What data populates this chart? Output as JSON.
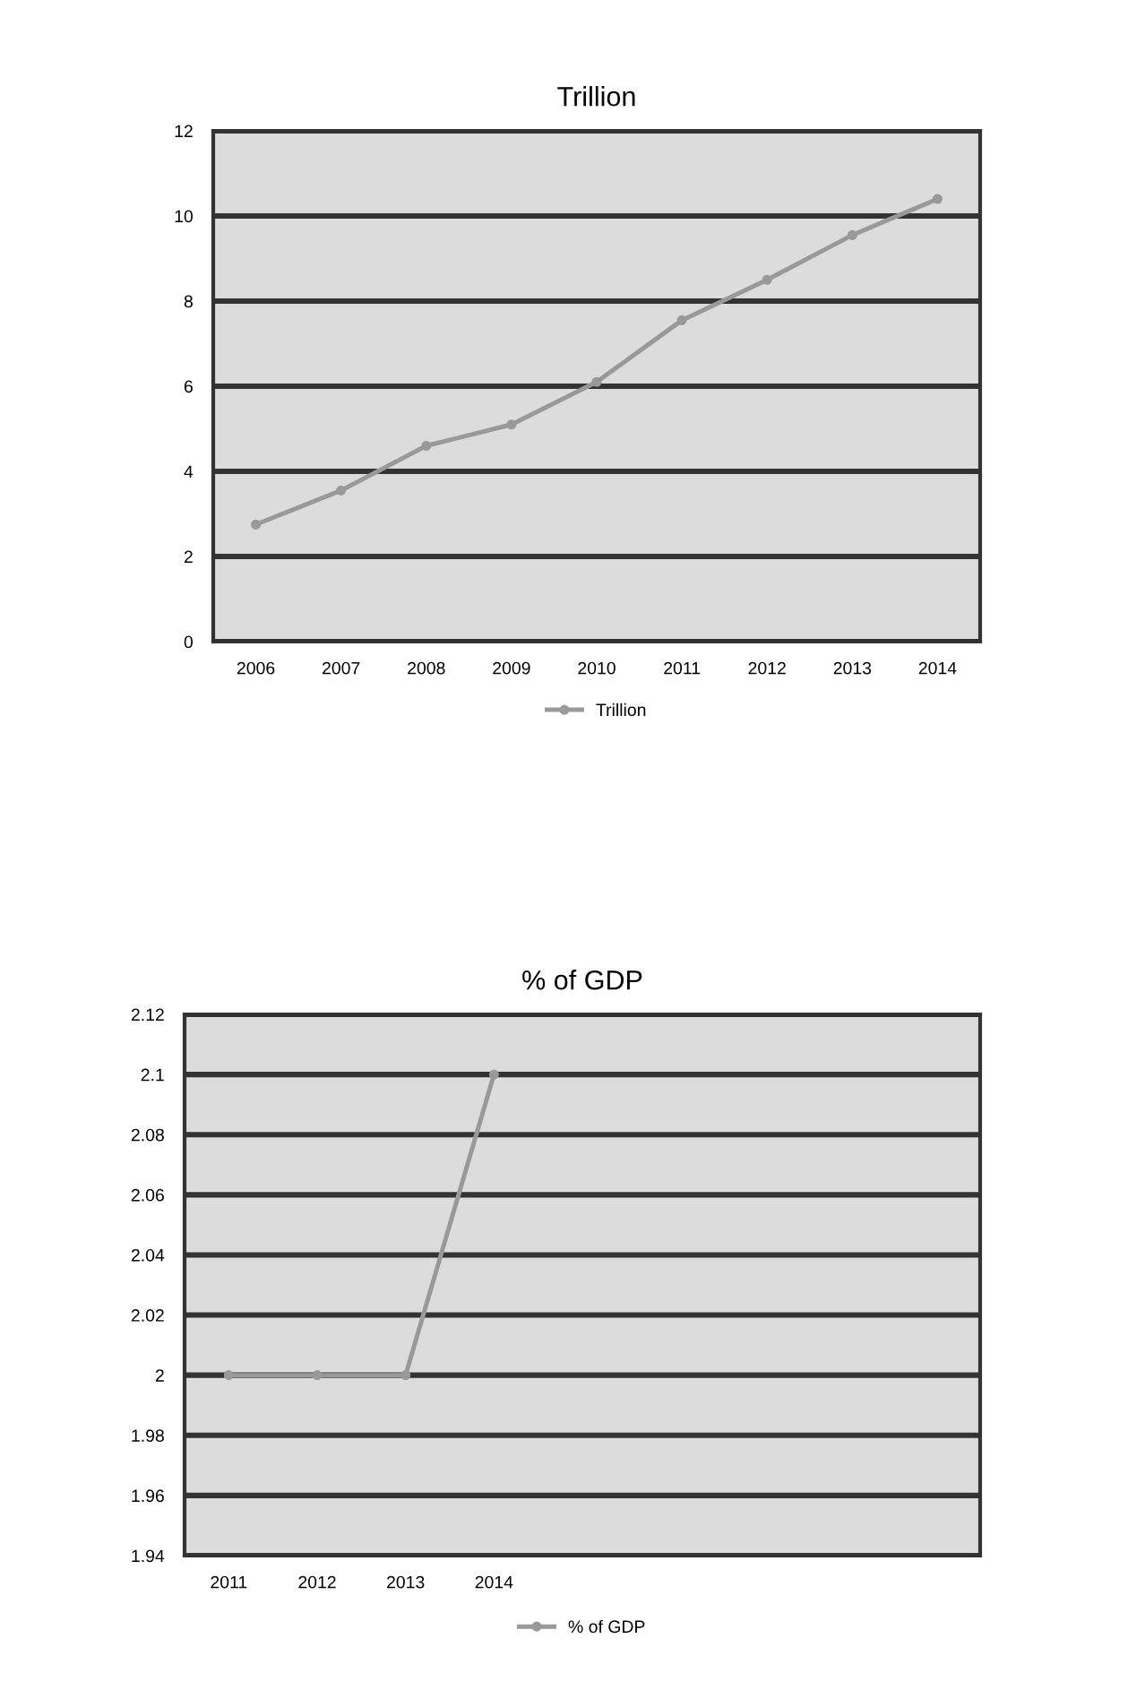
{
  "chart_data": [
    {
      "type": "line",
      "title": "Trillion",
      "categories": [
        "2006",
        "2007",
        "2008",
        "2009",
        "2010",
        "2011",
        "2012",
        "2013",
        "2014"
      ],
      "series": [
        {
          "name": "Trillion",
          "color": "#999999",
          "values": [
            2.75,
            3.55,
            4.6,
            5.1,
            6.1,
            7.55,
            8.5,
            9.55,
            10.4
          ]
        }
      ],
      "ylim": [
        0,
        12
      ],
      "yticks": [
        0,
        2,
        4,
        6,
        8,
        10,
        12
      ],
      "grid": "y",
      "legend": "bottom",
      "marker": "circle",
      "line_style": "solid"
    },
    {
      "type": "line",
      "title": "% of GDP",
      "categories": [
        "2011",
        "2012",
        "2013",
        "2014",
        null,
        null,
        null,
        null,
        null
      ],
      "series": [
        {
          "name": "% of GDP",
          "color": "#999999",
          "values": [
            2.0,
            2.0,
            2.0,
            2.1,
            null,
            null,
            null,
            null,
            null
          ]
        }
      ],
      "ylim": [
        1.94,
        2.12
      ],
      "yticks": [
        1.94,
        1.96,
        1.98,
        2,
        2.02,
        2.04,
        2.06,
        2.08,
        2.1,
        2.12
      ],
      "grid": "y",
      "legend": "bottom",
      "marker": "circle",
      "line_style": "solid"
    }
  ]
}
